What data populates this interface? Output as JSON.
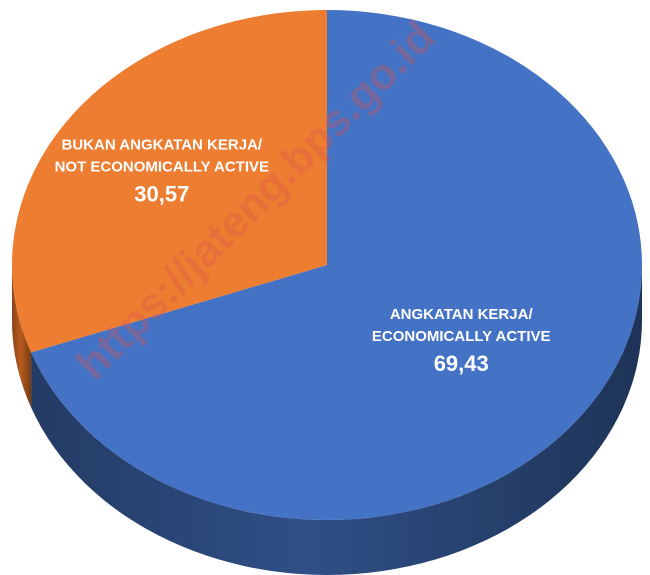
{
  "chart_data": {
    "type": "pie",
    "style": "3d",
    "slices": [
      {
        "label_line1": "ANGKATAN KERJA/",
        "label_line2": "ECONOMICALLY ACTIVE",
        "value": 69.43,
        "value_text": "69,43",
        "color": "#4472C4",
        "side_color": "#2F4F86"
      },
      {
        "label_line1": "BUKAN ANGKATAN KERJA/",
        "label_line2": "NOT ECONOMICALLY ACTIVE",
        "value": 30.57,
        "value_text": "30,57",
        "color": "#ED7D31",
        "side_color": "#B85A1E"
      }
    ],
    "start_angle_deg": 0,
    "direction": "clockwise"
  },
  "watermark": {
    "text": "https://jateng.bps.go.id",
    "color": "#d9534f"
  }
}
